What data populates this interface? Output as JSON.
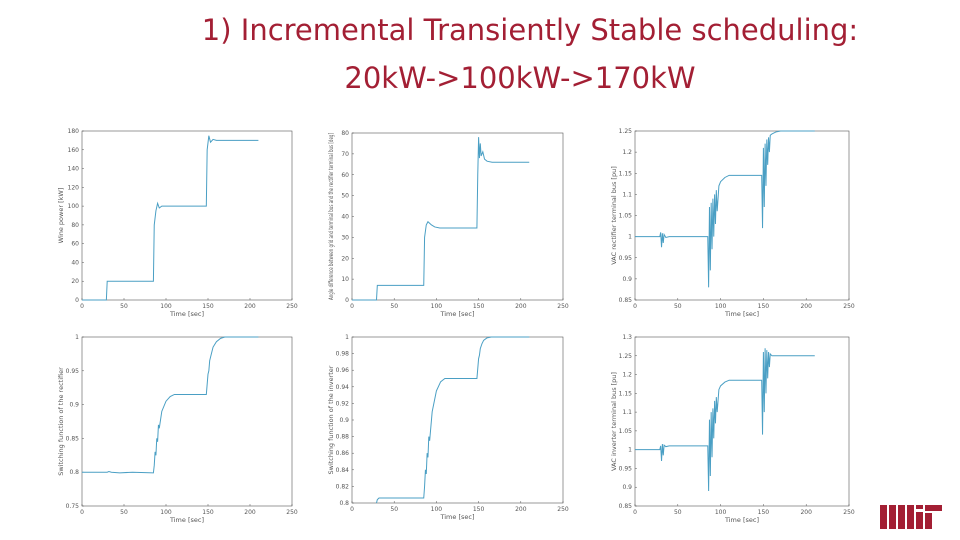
{
  "slide": {
    "title_line1": "1) Incremental Transiently Stable scheduling:",
    "title_line2": "20kW->100kW->170kW",
    "logo_color": "#a31f34",
    "line_color": "#4a9fc4"
  },
  "chart_data": [
    {
      "type": "line",
      "xlabel": "Time [sec]",
      "ylabel": "Wine power [kW]",
      "xlim": [
        0,
        250
      ],
      "ylim": [
        0,
        180
      ],
      "xticks": [
        0,
        50,
        100,
        150,
        200,
        250
      ],
      "yticks": [
        0,
        20,
        40,
        60,
        80,
        100,
        120,
        140,
        160,
        180
      ],
      "x": [
        0,
        29,
        30,
        85,
        86,
        88,
        90,
        92,
        95,
        100,
        148,
        149,
        151,
        153,
        156,
        160,
        210
      ],
      "y": [
        0,
        0,
        20,
        20,
        80,
        95,
        103,
        98,
        100,
        100,
        100,
        160,
        175,
        168,
        171,
        170,
        170
      ]
    },
    {
      "type": "line",
      "xlabel": "Time [sec]",
      "ylabel": "Angle difference between grid and terminal bus and the rectifier terminal bus [deg]",
      "xlim": [
        0,
        250
      ],
      "ylim": [
        0,
        80
      ],
      "xticks": [
        0,
        50,
        100,
        150,
        200,
        250
      ],
      "yticks": [
        0,
        10,
        20,
        30,
        40,
        50,
        60,
        70,
        80
      ],
      "x": [
        0,
        29,
        30,
        85,
        86,
        88,
        90,
        94,
        98,
        104,
        110,
        148,
        149,
        150,
        151,
        152,
        153,
        155,
        157,
        160,
        166,
        210
      ],
      "y": [
        0,
        0,
        7,
        7,
        30,
        36,
        37.5,
        36,
        35,
        34.5,
        34.5,
        34.5,
        60,
        78,
        68,
        75,
        69,
        71,
        67.5,
        66.5,
        66,
        66
      ]
    },
    {
      "type": "line",
      "xlabel": "Time [sec]",
      "ylabel": "VAC rectifier terminal bus [pu]",
      "xlim": [
        0,
        250
      ],
      "ylim": [
        0.85,
        1.25
      ],
      "xticks": [
        0,
        50,
        100,
        150,
        200,
        250
      ],
      "yticks": [
        0.85,
        0.9,
        0.95,
        1,
        1.05,
        1.1,
        1.15,
        1.2,
        1.25
      ],
      "x": [
        0,
        29,
        30,
        31,
        32,
        33,
        34,
        36,
        40,
        45,
        85,
        86,
        87,
        88,
        89,
        90,
        91,
        92,
        93,
        94,
        95,
        96,
        98,
        100,
        105,
        110,
        115,
        120,
        148,
        149,
        150,
        151,
        152,
        153,
        154,
        155,
        156,
        157,
        158,
        160,
        165,
        170,
        210
      ],
      "y": [
        1,
        1,
        1.01,
        0.975,
        1.008,
        0.985,
        1.005,
        0.998,
        1.0,
        1.0,
        1.0,
        0.88,
        1.07,
        0.92,
        1.08,
        0.97,
        1.09,
        1.0,
        1.1,
        1.03,
        1.11,
        1.06,
        1.12,
        1.13,
        1.14,
        1.145,
        1.145,
        1.145,
        1.145,
        1.02,
        1.21,
        1.07,
        1.22,
        1.12,
        1.23,
        1.17,
        1.235,
        1.2,
        1.24,
        1.243,
        1.248,
        1.25,
        1.25
      ]
    },
    {
      "type": "line",
      "xlabel": "Time [sec]",
      "ylabel": "Switching function of the rectifier",
      "xlim": [
        0,
        250
      ],
      "ylim": [
        0.75,
        1
      ],
      "xticks": [
        0,
        50,
        100,
        150,
        200,
        250
      ],
      "yticks": [
        0.75,
        0.8,
        0.85,
        0.9,
        0.95,
        1
      ],
      "x": [
        0,
        29,
        30,
        32,
        35,
        45,
        60,
        85,
        86,
        87,
        88,
        89,
        90,
        91,
        92,
        95,
        100,
        105,
        110,
        120,
        148,
        149,
        150,
        151,
        152,
        154,
        156,
        160,
        165,
        170,
        210
      ],
      "y": [
        0.8,
        0.8,
        0.8,
        0.801,
        0.8,
        0.799,
        0.8,
        0.799,
        0.81,
        0.83,
        0.825,
        0.85,
        0.845,
        0.87,
        0.865,
        0.89,
        0.905,
        0.912,
        0.915,
        0.915,
        0.915,
        0.93,
        0.945,
        0.95,
        0.965,
        0.975,
        0.985,
        0.993,
        0.998,
        1,
        1
      ]
    },
    {
      "type": "line",
      "xlabel": "Time [sec]",
      "ylabel": "Switching function of the inverter",
      "xlim": [
        0,
        250
      ],
      "ylim": [
        0.8,
        1
      ],
      "xticks": [
        0,
        50,
        100,
        150,
        200,
        250
      ],
      "yticks": [
        0.8,
        0.82,
        0.84,
        0.86,
        0.88,
        0.9,
        0.92,
        0.94,
        0.96,
        0.98,
        1
      ],
      "x": [
        29,
        30,
        32,
        35,
        45,
        60,
        85,
        86,
        87,
        88,
        89,
        90,
        91,
        92,
        95,
        100,
        105,
        110,
        120,
        148,
        149,
        150,
        151,
        152,
        154,
        156,
        160,
        165,
        170,
        210
      ],
      "y": [
        0.8,
        0.804,
        0.806,
        0.806,
        0.806,
        0.806,
        0.806,
        0.82,
        0.84,
        0.835,
        0.86,
        0.855,
        0.88,
        0.875,
        0.91,
        0.935,
        0.946,
        0.95,
        0.95,
        0.95,
        0.962,
        0.974,
        0.978,
        0.986,
        0.992,
        0.996,
        0.999,
        1,
        1,
        1
      ]
    },
    {
      "type": "line",
      "xlabel": "Time [sec]",
      "ylabel": "VAC inverter terminal bus [pu]",
      "xlim": [
        0,
        250
      ],
      "ylim": [
        0.85,
        1.3
      ],
      "xticks": [
        0,
        50,
        100,
        150,
        200,
        250
      ],
      "yticks": [
        0.85,
        0.9,
        0.95,
        1,
        1.05,
        1.1,
        1.15,
        1.2,
        1.25,
        1.3
      ],
      "x": [
        0,
        29,
        30,
        31,
        32,
        33,
        34,
        36,
        40,
        45,
        85,
        86,
        87,
        88,
        89,
        90,
        91,
        92,
        93,
        94,
        95,
        96,
        98,
        100,
        105,
        110,
        115,
        120,
        148,
        149,
        150,
        151,
        152,
        153,
        154,
        155,
        156,
        157,
        158,
        160,
        165,
        170,
        210
      ],
      "y": [
        1,
        1,
        1.01,
        0.97,
        1.015,
        0.985,
        1.012,
        1.008,
        1.01,
        1.01,
        1.01,
        0.89,
        1.08,
        0.93,
        1.1,
        0.98,
        1.11,
        1.03,
        1.13,
        1.07,
        1.14,
        1.1,
        1.16,
        1.17,
        1.18,
        1.185,
        1.185,
        1.185,
        1.185,
        1.04,
        1.26,
        1.1,
        1.27,
        1.15,
        1.265,
        1.19,
        1.26,
        1.22,
        1.255,
        1.25,
        1.25,
        1.25,
        1.25
      ]
    }
  ]
}
